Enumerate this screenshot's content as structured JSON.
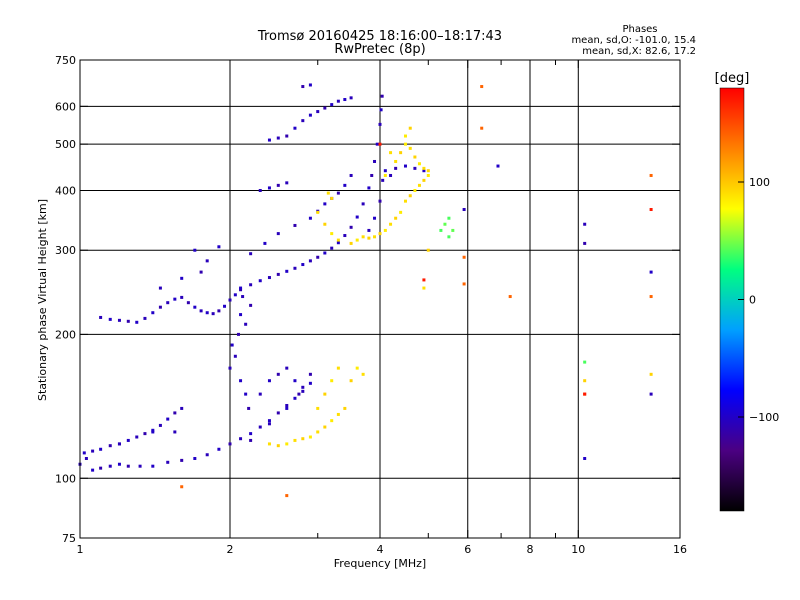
{
  "chart_data": {
    "type": "scatter",
    "title": "Tromsø 20160425 18:16:00–18:17:43",
    "subtitle": "RwPretec (8p)",
    "stats_title": "Phases",
    "stats_line1": "mean, sd,O: -101.0, 15.4",
    "stats_line2": "mean, sd,X:  82.6, 17.2",
    "xlabel": "Frequency [MHz]",
    "ylabel": "Stationary phase Virtual Height [km]",
    "x_scale": "log",
    "y_scale": "log",
    "xlim": [
      1,
      16
    ],
    "ylim": [
      75,
      750
    ],
    "x_ticks": [
      1,
      2,
      4,
      6,
      8,
      10,
      16
    ],
    "x_tick_labels": [
      "1",
      "2",
      "4",
      "6",
      "8",
      "10",
      "16"
    ],
    "x_grid": [
      2,
      4,
      6,
      8,
      10
    ],
    "x_minor_ticks": [
      3,
      5,
      7,
      9
    ],
    "y_ticks": [
      75,
      100,
      200,
      300,
      400,
      500,
      600,
      750
    ],
    "y_tick_labels": [
      "75",
      "100",
      "200",
      "300",
      "400",
      "500",
      "600",
      "750"
    ],
    "y_grid": [
      100,
      200,
      300,
      400,
      500,
      600
    ],
    "grid": true,
    "colorbar": {
      "label": "[deg]",
      "range": [
        -180,
        180
      ],
      "ticks": [
        -100,
        0,
        100
      ],
      "tick_labels": [
        "−100",
        "0",
        "100"
      ],
      "colors": [
        "#000000",
        "#4b0082",
        "#0000ff",
        "#00a0ff",
        "#00ff80",
        "#ffff00",
        "#ff8000",
        "#ff0000"
      ]
    },
    "series": [
      {
        "points": [
          [
            1.0,
            107,
            -105
          ],
          [
            1.03,
            110,
            -105
          ],
          [
            1.06,
            104,
            -100
          ],
          [
            1.1,
            105,
            -110
          ],
          [
            1.15,
            106,
            -105
          ],
          [
            1.2,
            107,
            -100
          ],
          [
            1.25,
            106,
            -110
          ],
          [
            1.32,
            106,
            -105
          ],
          [
            1.4,
            106,
            -100
          ],
          [
            1.5,
            108,
            -105
          ],
          [
            1.6,
            109,
            -110
          ],
          [
            1.7,
            110,
            -100
          ],
          [
            1.8,
            112,
            -105
          ],
          [
            1.9,
            115,
            -100
          ],
          [
            2.0,
            118,
            -110
          ],
          [
            2.1,
            121,
            -105
          ],
          [
            2.2,
            124,
            -100
          ],
          [
            2.3,
            128,
            -105
          ],
          [
            2.4,
            132,
            -100
          ],
          [
            2.5,
            137,
            -110
          ],
          [
            2.6,
            142,
            -105
          ],
          [
            2.7,
            147,
            -100
          ],
          [
            2.8,
            152,
            -105
          ],
          [
            2.9,
            158,
            -100
          ],
          [
            1.02,
            113,
            -100
          ],
          [
            1.06,
            114,
            -105
          ],
          [
            1.1,
            115,
            -100
          ],
          [
            1.15,
            117,
            -110
          ],
          [
            1.2,
            118,
            -105
          ],
          [
            1.25,
            120,
            -100
          ],
          [
            1.3,
            122,
            -105
          ],
          [
            1.35,
            124,
            -110
          ],
          [
            1.4,
            126,
            -100
          ],
          [
            1.45,
            129,
            -105
          ],
          [
            1.5,
            133,
            -100
          ],
          [
            1.55,
            137,
            -110
          ],
          [
            1.6,
            140,
            -105
          ],
          [
            1.1,
            217,
            -105
          ],
          [
            1.15,
            215,
            -100
          ],
          [
            1.2,
            214,
            -105
          ],
          [
            1.25,
            213,
            -110
          ],
          [
            1.3,
            212,
            -100
          ],
          [
            1.35,
            216,
            -105
          ],
          [
            1.4,
            222,
            -100
          ],
          [
            1.45,
            228,
            -110
          ],
          [
            1.5,
            233,
            -105
          ],
          [
            1.55,
            237,
            -100
          ],
          [
            1.6,
            239,
            -105
          ],
          [
            1.65,
            233,
            -110
          ],
          [
            1.7,
            228,
            -100
          ],
          [
            1.75,
            224,
            -105
          ],
          [
            1.8,
            222,
            -100
          ],
          [
            1.85,
            221,
            -105
          ],
          [
            1.9,
            224,
            -110
          ],
          [
            1.95,
            229,
            -100
          ],
          [
            2.0,
            236,
            -105
          ],
          [
            2.05,
            242,
            -100
          ],
          [
            2.1,
            248,
            -110
          ],
          [
            2.2,
            254,
            -105
          ],
          [
            2.3,
            259,
            -100
          ],
          [
            2.4,
            263,
            -105
          ],
          [
            2.5,
            267,
            -110
          ],
          [
            2.6,
            271,
            -100
          ],
          [
            2.7,
            275,
            -105
          ],
          [
            2.8,
            280,
            -100
          ],
          [
            2.9,
            285,
            -105
          ],
          [
            3.0,
            290,
            -110
          ],
          [
            3.1,
            296,
            -100
          ],
          [
            3.2,
            303,
            -105
          ],
          [
            3.3,
            311,
            -100
          ],
          [
            3.4,
            322,
            -105
          ],
          [
            3.5,
            335,
            -110
          ],
          [
            3.6,
            352,
            -100
          ],
          [
            3.7,
            375,
            -105
          ],
          [
            3.8,
            405,
            -100
          ],
          [
            3.85,
            430,
            -110
          ],
          [
            3.9,
            460,
            -105
          ],
          [
            3.95,
            500,
            -100
          ],
          [
            4.0,
            550,
            -105
          ],
          [
            4.02,
            590,
            -100
          ],
          [
            4.04,
            630,
            -110
          ],
          [
            1.7,
            300,
            -100
          ],
          [
            1.8,
            285,
            -105
          ],
          [
            1.6,
            262,
            -100
          ],
          [
            1.45,
            250,
            -105
          ],
          [
            1.75,
            270,
            -110
          ],
          [
            1.9,
            305,
            -100
          ],
          [
            2.2,
            295,
            -105
          ],
          [
            2.35,
            310,
            -100
          ],
          [
            2.5,
            325,
            -105
          ],
          [
            2.7,
            338,
            -110
          ],
          [
            2.9,
            350,
            -100
          ],
          [
            3.0,
            362,
            -105
          ],
          [
            3.1,
            375,
            -100
          ],
          [
            3.2,
            385,
            -105
          ],
          [
            3.3,
            395,
            -110
          ],
          [
            3.4,
            410,
            -100
          ],
          [
            3.5,
            430,
            -105
          ],
          [
            2.4,
            510,
            -100
          ],
          [
            2.5,
            515,
            -105
          ],
          [
            2.6,
            520,
            -110
          ],
          [
            2.7,
            540,
            -100
          ],
          [
            2.8,
            560,
            -105
          ],
          [
            2.9,
            575,
            -100
          ],
          [
            3.0,
            585,
            -105
          ],
          [
            3.1,
            595,
            -110
          ],
          [
            3.2,
            605,
            -100
          ],
          [
            3.3,
            615,
            -105
          ],
          [
            3.4,
            620,
            -100
          ],
          [
            3.5,
            625,
            -105
          ],
          [
            2.8,
            660,
            -110
          ],
          [
            2.9,
            665,
            -100
          ],
          [
            2.3,
            400,
            -105
          ],
          [
            2.4,
            405,
            -100
          ],
          [
            2.5,
            410,
            -110
          ],
          [
            2.6,
            415,
            -105
          ],
          [
            2.1,
            160,
            -100
          ],
          [
            2.05,
            180,
            -105
          ],
          [
            2.08,
            200,
            -110
          ],
          [
            2.1,
            220,
            -100
          ],
          [
            2.12,
            240,
            -105
          ],
          [
            2.15,
            150,
            -100
          ],
          [
            2.18,
            140,
            -110
          ],
          [
            2.0,
            170,
            -105
          ],
          [
            2.02,
            190,
            -100
          ],
          [
            2.15,
            210,
            -105
          ],
          [
            2.2,
            230,
            -110
          ],
          [
            2.1,
            250,
            -100
          ],
          [
            2.3,
            150,
            -105
          ],
          [
            2.4,
            160,
            -100
          ],
          [
            2.5,
            165,
            -110
          ],
          [
            2.6,
            170,
            -105
          ],
          [
            2.7,
            160,
            -100
          ],
          [
            2.8,
            155,
            -105
          ],
          [
            2.9,
            165,
            -110
          ],
          [
            3.8,
            330,
            -105
          ],
          [
            3.9,
            350,
            -100
          ],
          [
            4.0,
            380,
            -110
          ],
          [
            4.05,
            420,
            -105
          ],
          [
            4.1,
            440,
            -100
          ],
          [
            4.2,
            430,
            -105
          ],
          [
            4.3,
            445,
            -110
          ],
          [
            4.5,
            450,
            -100
          ],
          [
            4.7,
            445,
            -105
          ],
          [
            4.9,
            440,
            -100
          ],
          [
            1.2,
            118,
            -105
          ],
          [
            1.4,
            125,
            -100
          ],
          [
            1.55,
            125,
            -105
          ],
          [
            2.2,
            120,
            -110
          ],
          [
            2.4,
            130,
            -105
          ],
          [
            2.6,
            140,
            -100
          ],
          [
            2.75,
            150,
            -110
          ],
          [
            10.3,
            110,
            -100
          ],
          [
            14.0,
            150,
            -105
          ],
          [
            6.9,
            450,
            -100
          ],
          [
            10.3,
            310,
            -110
          ],
          [
            5.9,
            365,
            -105
          ],
          [
            14.0,
            270,
            -100
          ],
          [
            10.3,
            340,
            -105
          ]
        ]
      },
      {
        "points": [
          [
            2.4,
            118,
            90
          ],
          [
            2.5,
            117,
            95
          ],
          [
            2.6,
            118,
            85
          ],
          [
            2.7,
            120,
            90
          ],
          [
            2.8,
            121,
            95
          ],
          [
            2.9,
            122,
            85
          ],
          [
            3.0,
            125,
            90
          ],
          [
            3.1,
            128,
            95
          ],
          [
            3.2,
            132,
            85
          ],
          [
            3.3,
            136,
            90
          ],
          [
            3.4,
            140,
            95
          ],
          [
            3.0,
            140,
            90
          ],
          [
            3.1,
            150,
            95
          ],
          [
            3.2,
            160,
            85
          ],
          [
            3.3,
            170,
            90
          ],
          [
            3.5,
            160,
            95
          ],
          [
            3.6,
            170,
            85
          ],
          [
            3.7,
            165,
            90
          ],
          [
            3.9,
            320,
            90
          ],
          [
            4.0,
            325,
            95
          ],
          [
            4.1,
            330,
            85
          ],
          [
            4.2,
            340,
            90
          ],
          [
            4.3,
            350,
            95
          ],
          [
            4.4,
            360,
            85
          ],
          [
            4.5,
            380,
            90
          ],
          [
            4.6,
            390,
            95
          ],
          [
            4.7,
            400,
            85
          ],
          [
            4.8,
            410,
            90
          ],
          [
            4.9,
            420,
            95
          ],
          [
            5.0,
            430,
            85
          ],
          [
            4.3,
            460,
            90
          ],
          [
            4.4,
            480,
            95
          ],
          [
            4.5,
            500,
            85
          ],
          [
            4.6,
            490,
            90
          ],
          [
            4.7,
            470,
            95
          ],
          [
            4.8,
            455,
            85
          ],
          [
            4.9,
            445,
            90
          ],
          [
            5.0,
            440,
            95
          ],
          [
            4.1,
            430,
            85
          ],
          [
            4.2,
            480,
            90
          ],
          [
            4.6,
            540,
            95
          ],
          [
            4.5,
            520,
            85
          ],
          [
            3.0,
            360,
            90
          ],
          [
            3.1,
            340,
            95
          ],
          [
            3.2,
            325,
            85
          ],
          [
            3.3,
            315,
            90
          ],
          [
            3.5,
            310,
            95
          ],
          [
            3.6,
            315,
            85
          ],
          [
            3.7,
            320,
            90
          ],
          [
            3.8,
            318,
            95
          ],
          [
            5.3,
            330,
            40
          ],
          [
            5.4,
            340,
            45
          ],
          [
            5.5,
            350,
            40
          ],
          [
            5.6,
            330,
            45
          ],
          [
            5.5,
            320,
            40
          ],
          [
            4.9,
            250,
            90
          ],
          [
            5.0,
            300,
            95
          ],
          [
            10.3,
            175,
            40
          ],
          [
            10.3,
            160,
            95
          ],
          [
            10.3,
            150,
            150
          ],
          [
            14.0,
            165,
            95
          ],
          [
            3.2,
            385,
            95
          ],
          [
            3.15,
            395,
            90
          ]
        ]
      },
      {
        "points": [
          [
            6.4,
            660,
            140
          ],
          [
            6.4,
            540,
            140
          ],
          [
            7.3,
            240,
            140
          ],
          [
            5.9,
            290,
            140
          ],
          [
            5.9,
            255,
            140
          ],
          [
            14.0,
            430,
            140
          ],
          [
            14.0,
            240,
            140
          ],
          [
            2.6,
            92,
            140
          ],
          [
            1.6,
            96,
            140
          ]
        ]
      },
      {
        "points": [
          [
            14.0,
            365,
            170
          ],
          [
            4.9,
            260,
            170
          ],
          [
            4.0,
            500,
            170
          ],
          [
            10.3,
            150,
            170
          ]
        ]
      }
    ]
  }
}
